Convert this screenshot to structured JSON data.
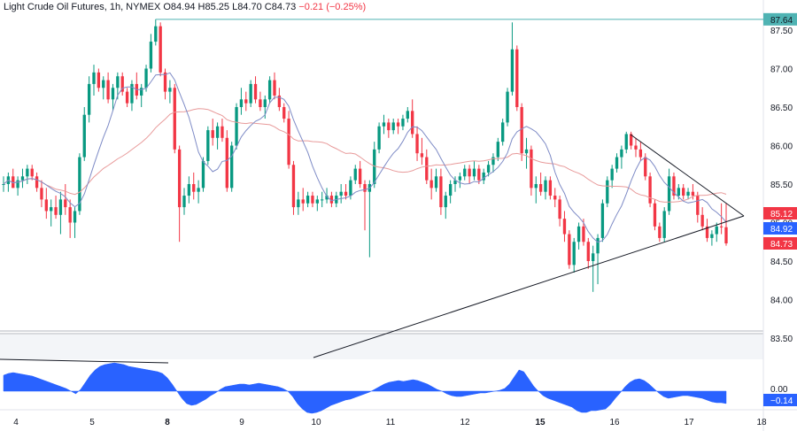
{
  "header": {
    "symbol": "Light Crude Oil Futures, 1h, NYMEX",
    "o_label": "O",
    "o": "84.94",
    "h_label": "H",
    "h": "85.25",
    "l_label": "L",
    "l": "84.70",
    "c_label": "C",
    "c": "84.73",
    "change": "−0.21 (−0.25%)"
  },
  "price_axis": {
    "ticks": [
      "87.50",
      "87.00",
      "86.50",
      "86.00",
      "85.50",
      "85.00",
      "84.50",
      "84.00",
      "83.50"
    ],
    "top_badge": "87.64",
    "badges": [
      {
        "text": "85.12",
        "color": "#f23645"
      },
      {
        "text": "84.92",
        "color": "#2962ff"
      },
      {
        "text": "84.73",
        "color": "#f23645"
      }
    ]
  },
  "osc_axis": {
    "ticks": [
      "0.00"
    ],
    "badge": "−0.14"
  },
  "time_axis": {
    "labels": [
      "4",
      "5",
      "8",
      "9",
      "10",
      "11",
      "12",
      "15",
      "16",
      "17",
      "18"
    ],
    "bold": [
      "8",
      "15"
    ]
  },
  "colors": {
    "up": "#089981",
    "down": "#f23645",
    "ma_fast": "#7e8bc6",
    "ma_slow": "#e89a9a",
    "osc": "#2962ff",
    "resistance": "#4fb3b3"
  },
  "chart_data": {
    "type": "candlestick",
    "ylim": [
      83.5,
      87.7
    ],
    "resistance": 87.64,
    "candles": [
      [
        85.5,
        85.6,
        85.4,
        85.5
      ],
      [
        85.5,
        85.65,
        85.4,
        85.6
      ],
      [
        85.6,
        85.7,
        85.45,
        85.45
      ],
      [
        85.45,
        85.6,
        85.35,
        85.55
      ],
      [
        85.55,
        85.7,
        85.45,
        85.6
      ],
      [
        85.6,
        85.75,
        85.5,
        85.7
      ],
      [
        85.7,
        85.75,
        85.55,
        85.6
      ],
      [
        85.6,
        85.65,
        85.4,
        85.45
      ],
      [
        85.45,
        85.55,
        85.2,
        85.3
      ],
      [
        85.3,
        85.45,
        85.05,
        85.15
      ],
      [
        85.15,
        85.3,
        84.95,
        85.2
      ],
      [
        85.2,
        85.35,
        85.05,
        85.1
      ],
      [
        85.1,
        85.4,
        84.85,
        85.3
      ],
      [
        85.3,
        85.5,
        85.1,
        85.2
      ],
      [
        85.2,
        85.3,
        84.8,
        85.0
      ],
      [
        85.0,
        85.2,
        84.8,
        85.15
      ],
      [
        85.15,
        85.9,
        85.1,
        85.85
      ],
      [
        85.85,
        86.5,
        85.8,
        86.4
      ],
      [
        86.4,
        86.9,
        86.3,
        86.8
      ],
      [
        86.8,
        87.05,
        86.65,
        86.95
      ],
      [
        86.95,
        87.0,
        86.7,
        86.75
      ],
      [
        86.75,
        86.9,
        86.6,
        86.85
      ],
      [
        86.85,
        86.95,
        86.55,
        86.6
      ],
      [
        86.6,
        86.8,
        86.45,
        86.75
      ],
      [
        86.75,
        86.95,
        86.6,
        86.9
      ],
      [
        86.9,
        86.95,
        86.65,
        86.7
      ],
      [
        86.7,
        86.75,
        86.5,
        86.55
      ],
      [
        86.55,
        86.85,
        86.45,
        86.8
      ],
      [
        86.8,
        86.95,
        86.6,
        86.65
      ],
      [
        86.65,
        86.8,
        86.5,
        86.75
      ],
      [
        86.75,
        87.05,
        86.7,
        87.0
      ],
      [
        87.0,
        87.45,
        86.95,
        87.35
      ],
      [
        87.35,
        87.64,
        87.3,
        87.55
      ],
      [
        87.55,
        87.6,
        86.9,
        86.95
      ],
      [
        86.95,
        87.0,
        86.6,
        86.7
      ],
      [
        86.7,
        86.85,
        86.55,
        86.75
      ],
      [
        86.75,
        86.8,
        85.9,
        85.95
      ],
      [
        85.95,
        86.0,
        84.75,
        85.2
      ],
      [
        85.2,
        85.45,
        85.1,
        85.35
      ],
      [
        85.35,
        85.6,
        85.25,
        85.5
      ],
      [
        85.5,
        85.65,
        85.3,
        85.4
      ],
      [
        85.4,
        85.55,
        85.25,
        85.45
      ],
      [
        85.45,
        85.85,
        85.4,
        85.8
      ],
      [
        85.8,
        86.25,
        85.75,
        86.2
      ],
      [
        86.2,
        86.35,
        86.0,
        86.1
      ],
      [
        86.1,
        86.3,
        85.95,
        86.25
      ],
      [
        86.25,
        86.35,
        86.05,
        86.1
      ],
      [
        86.1,
        86.2,
        85.4,
        85.45
      ],
      [
        85.45,
        86.05,
        85.4,
        86.0
      ],
      [
        86.0,
        86.55,
        85.95,
        86.5
      ],
      [
        86.5,
        86.75,
        86.4,
        86.6
      ],
      [
        86.6,
        86.7,
        86.45,
        86.55
      ],
      [
        86.55,
        86.85,
        86.5,
        86.8
      ],
      [
        86.8,
        86.9,
        86.55,
        86.6
      ],
      [
        86.6,
        86.7,
        86.45,
        86.5
      ],
      [
        86.5,
        86.65,
        86.35,
        86.6
      ],
      [
        86.6,
        86.9,
        86.55,
        86.85
      ],
      [
        86.85,
        86.95,
        86.6,
        86.65
      ],
      [
        86.65,
        86.75,
        86.45,
        86.5
      ],
      [
        86.5,
        86.55,
        86.3,
        86.35
      ],
      [
        86.35,
        86.45,
        85.7,
        85.75
      ],
      [
        85.75,
        85.8,
        85.1,
        85.2
      ],
      [
        85.2,
        85.4,
        85.1,
        85.3
      ],
      [
        85.3,
        85.45,
        85.15,
        85.25
      ],
      [
        85.25,
        85.4,
        85.2,
        85.35
      ],
      [
        85.35,
        85.4,
        85.2,
        85.25
      ],
      [
        85.25,
        85.35,
        85.15,
        85.3
      ],
      [
        85.3,
        85.4,
        85.2,
        85.3
      ],
      [
        85.3,
        85.45,
        85.25,
        85.35
      ],
      [
        85.35,
        85.4,
        85.2,
        85.25
      ],
      [
        85.25,
        85.4,
        85.2,
        85.35
      ],
      [
        85.35,
        85.5,
        85.25,
        85.4
      ],
      [
        85.4,
        85.5,
        85.3,
        85.35
      ],
      [
        85.35,
        85.6,
        85.3,
        85.55
      ],
      [
        85.55,
        85.75,
        85.5,
        85.7
      ],
      [
        85.7,
        85.8,
        85.45,
        85.5
      ],
      [
        85.5,
        85.55,
        84.9,
        85.4
      ],
      [
        85.4,
        85.55,
        84.55,
        85.5
      ],
      [
        85.5,
        86.05,
        85.45,
        85.95
      ],
      [
        85.95,
        86.3,
        85.9,
        86.25
      ],
      [
        86.25,
        86.4,
        86.15,
        86.3
      ],
      [
        86.3,
        86.35,
        86.1,
        86.2
      ],
      [
        86.2,
        86.35,
        86.15,
        86.3
      ],
      [
        86.3,
        86.35,
        86.15,
        86.25
      ],
      [
        86.25,
        86.4,
        86.2,
        86.35
      ],
      [
        86.35,
        86.5,
        86.3,
        86.45
      ],
      [
        86.45,
        86.6,
        86.1,
        86.15
      ],
      [
        86.15,
        86.25,
        85.8,
        85.9
      ],
      [
        85.9,
        86.1,
        85.75,
        85.85
      ],
      [
        85.85,
        85.95,
        85.5,
        85.55
      ],
      [
        85.55,
        85.7,
        85.3,
        85.45
      ],
      [
        85.45,
        85.7,
        85.4,
        85.6
      ],
      [
        85.6,
        85.7,
        85.1,
        85.2
      ],
      [
        85.2,
        85.4,
        85.05,
        85.35
      ],
      [
        85.35,
        85.55,
        85.25,
        85.5
      ],
      [
        85.5,
        85.6,
        85.4,
        85.55
      ],
      [
        85.55,
        85.65,
        85.45,
        85.6
      ],
      [
        85.6,
        85.75,
        85.55,
        85.7
      ],
      [
        85.7,
        85.75,
        85.5,
        85.6
      ],
      [
        85.6,
        85.8,
        85.55,
        85.7
      ],
      [
        85.7,
        85.75,
        85.5,
        85.55
      ],
      [
        85.55,
        85.7,
        85.5,
        85.65
      ],
      [
        85.65,
        85.8,
        85.6,
        85.75
      ],
      [
        85.75,
        85.9,
        85.65,
        85.85
      ],
      [
        85.85,
        86.1,
        85.8,
        86.05
      ],
      [
        86.05,
        86.35,
        86.0,
        86.3
      ],
      [
        86.3,
        86.75,
        86.25,
        86.7
      ],
      [
        86.7,
        87.6,
        86.65,
        87.25
      ],
      [
        87.25,
        87.3,
        86.45,
        86.5
      ],
      [
        86.5,
        86.55,
        85.8,
        85.9
      ],
      [
        85.9,
        86.1,
        85.7,
        85.95
      ],
      [
        85.95,
        86.0,
        85.35,
        85.45
      ],
      [
        85.45,
        85.6,
        85.25,
        85.5
      ],
      [
        85.5,
        85.65,
        85.35,
        85.4
      ],
      [
        85.4,
        85.6,
        85.3,
        85.55
      ],
      [
        85.55,
        85.6,
        85.3,
        85.35
      ],
      [
        85.35,
        85.45,
        85.2,
        85.3
      ],
      [
        85.3,
        85.35,
        84.95,
        85.05
      ],
      [
        85.05,
        85.15,
        84.75,
        84.85
      ],
      [
        84.85,
        84.9,
        84.4,
        84.45
      ],
      [
        84.45,
        84.8,
        84.35,
        84.75
      ],
      [
        84.75,
        85.0,
        84.65,
        84.95
      ],
      [
        84.95,
        85.05,
        84.7,
        84.75
      ],
      [
        84.75,
        84.8,
        84.4,
        84.5
      ],
      [
        84.5,
        84.7,
        84.1,
        84.6
      ],
      [
        84.6,
        84.85,
        84.2,
        84.8
      ],
      [
        84.8,
        85.3,
        84.75,
        85.25
      ],
      [
        85.25,
        85.6,
        85.2,
        85.55
      ],
      [
        85.55,
        85.75,
        85.45,
        85.7
      ],
      [
        85.7,
        85.9,
        85.65,
        85.85
      ],
      [
        85.85,
        86.0,
        85.7,
        85.95
      ],
      [
        85.95,
        86.18,
        85.9,
        86.15
      ],
      [
        86.15,
        86.18,
        85.95,
        86.0
      ],
      [
        86.0,
        86.1,
        85.85,
        85.95
      ],
      [
        85.95,
        86.05,
        85.8,
        85.85
      ],
      [
        85.85,
        85.9,
        85.55,
        85.6
      ],
      [
        85.6,
        85.65,
        85.2,
        85.25
      ],
      [
        85.25,
        85.3,
        84.9,
        84.95
      ],
      [
        84.95,
        85.0,
        84.75,
        84.8
      ],
      [
        84.8,
        85.2,
        84.75,
        85.15
      ],
      [
        85.15,
        85.7,
        85.1,
        85.6
      ],
      [
        85.6,
        85.65,
        85.3,
        85.35
      ],
      [
        85.35,
        85.5,
        85.3,
        85.45
      ],
      [
        85.45,
        85.5,
        85.3,
        85.35
      ],
      [
        85.35,
        85.45,
        85.3,
        85.4
      ],
      [
        85.4,
        85.5,
        85.3,
        85.35
      ],
      [
        85.35,
        85.4,
        85.0,
        85.1
      ],
      [
        85.1,
        85.2,
        84.9,
        84.95
      ],
      [
        84.95,
        85.05,
        84.75,
        84.8
      ],
      [
        84.8,
        84.9,
        84.7,
        84.85
      ],
      [
        84.85,
        85.0,
        84.75,
        84.95
      ],
      [
        84.95,
        85.25,
        84.85,
        84.94
      ],
      [
        84.94,
        85.25,
        84.7,
        84.73
      ]
    ],
    "oscillator": [
      0.18,
      0.2,
      0.21,
      0.2,
      0.19,
      0.18,
      0.17,
      0.15,
      0.13,
      0.11,
      0.09,
      0.07,
      0.05,
      0.03,
      0.0,
      -0.03,
      0.02,
      0.1,
      0.18,
      0.24,
      0.28,
      0.3,
      0.31,
      0.32,
      0.31,
      0.3,
      0.28,
      0.27,
      0.26,
      0.25,
      0.24,
      0.23,
      0.22,
      0.2,
      0.15,
      0.08,
      0.0,
      -0.08,
      -0.14,
      -0.16,
      -0.15,
      -0.12,
      -0.09,
      -0.05,
      -0.02,
      0.02,
      0.05,
      0.06,
      0.07,
      0.08,
      0.08,
      0.07,
      0.08,
      0.09,
      0.08,
      0.07,
      0.06,
      0.05,
      0.03,
      0.0,
      -0.06,
      -0.14,
      -0.2,
      -0.24,
      -0.25,
      -0.24,
      -0.22,
      -0.19,
      -0.16,
      -0.14,
      -0.12,
      -0.1,
      -0.09,
      -0.07,
      -0.05,
      -0.03,
      -0.01,
      0.02,
      0.05,
      0.08,
      0.1,
      0.11,
      0.12,
      0.11,
      0.12,
      0.13,
      0.12,
      0.1,
      0.08,
      0.05,
      0.02,
      0.0,
      -0.03,
      -0.05,
      -0.06,
      -0.06,
      -0.05,
      -0.04,
      -0.03,
      -0.02,
      -0.02,
      -0.01,
      0.0,
      0.01,
      0.03,
      0.08,
      0.16,
      0.24,
      0.22,
      0.14,
      0.06,
      0.0,
      -0.05,
      -0.08,
      -0.1,
      -0.12,
      -0.14,
      -0.16,
      -0.18,
      -0.22,
      -0.24,
      -0.24,
      -0.22,
      -0.22,
      -0.21,
      -0.2,
      -0.15,
      -0.08,
      -0.02,
      0.05,
      0.1,
      0.13,
      0.14,
      0.12,
      0.08,
      0.03,
      -0.02,
      -0.06,
      -0.08,
      -0.07,
      -0.06,
      -0.05,
      -0.05,
      -0.06,
      -0.07,
      -0.08,
      -0.1,
      -0.12,
      -0.13,
      -0.13,
      -0.14
    ]
  }
}
